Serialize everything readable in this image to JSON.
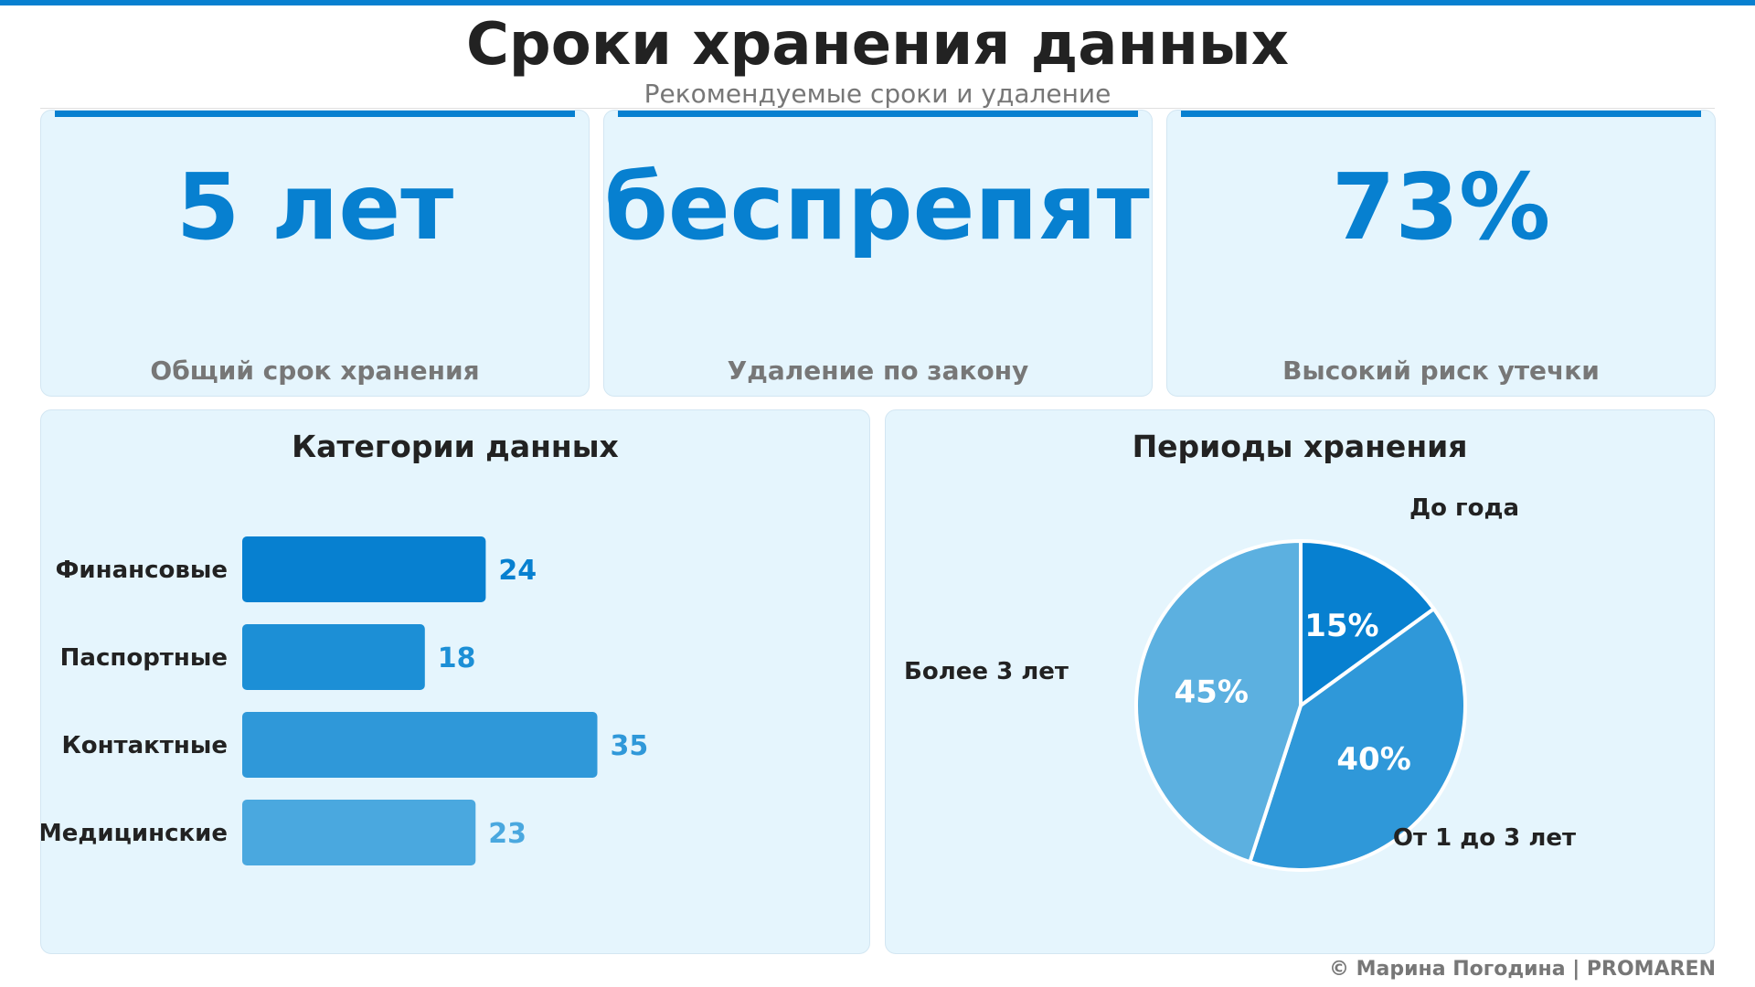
{
  "header": {
    "title": "Сроки хранения данных",
    "subtitle": "Рекомендуемые сроки и удаление"
  },
  "kpis": [
    {
      "value": "5 лет",
      "label": "Общий срок хранения"
    },
    {
      "value": "беспрепятственно",
      "label": "Удаление по закону"
    },
    {
      "value": "73%",
      "label": "Высокий риск утечки"
    }
  ],
  "colors": {
    "accent": "#0780d0",
    "panel_bg": "#e5f5fd",
    "bar_shades": [
      "#0780d0",
      "#1c8fd6",
      "#2f98d9",
      "#4aa8df"
    ],
    "pie_shades": [
      "#0780d0",
      "#2f98d9",
      "#5cb0e0"
    ]
  },
  "chart_data": [
    {
      "type": "bar",
      "orientation": "horizontal",
      "title": "Категории данных",
      "categories": [
        "Финансовые",
        "Паспортные",
        "Контактные",
        "Медицинские"
      ],
      "values": [
        24,
        18,
        35,
        23
      ],
      "data_labels": [
        "24",
        "18",
        "35",
        "23"
      ],
      "grid": false
    },
    {
      "type": "pie",
      "title": "Периоды хранения",
      "labels": [
        "До года",
        "От 1 до 3 лет",
        "Более 3 лет"
      ],
      "values": [
        15,
        40,
        45
      ],
      "data_labels": [
        "15%",
        "40%",
        "45%"
      ]
    }
  ],
  "footer": {
    "copyright": "© Марина Погодина | PROMAREN"
  }
}
